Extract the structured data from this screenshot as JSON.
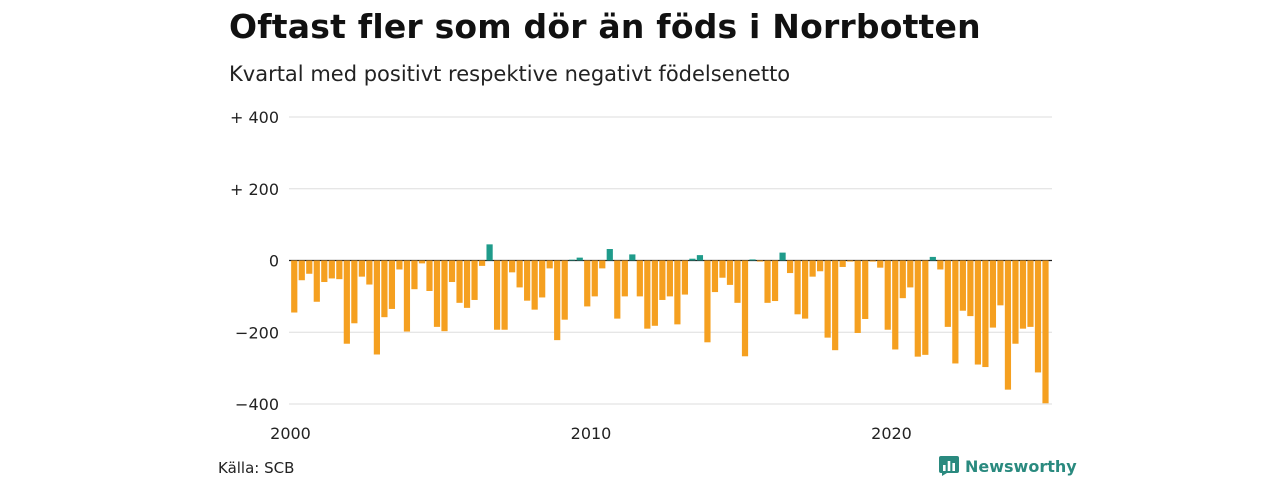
{
  "header": {
    "title": "Oftast fler som dör än föds i Norrbotten",
    "subtitle": "Kvartal med positivt respektive negativt födelsenetto"
  },
  "footer": {
    "source": "Källa: SCB",
    "brand": "Newsworthy",
    "brand_icon": "newsworthy-logo-icon"
  },
  "colors": {
    "positive": "#1f9b8b",
    "negative": "#f5a020",
    "grid": "#dddddd",
    "axis": "#222222"
  },
  "chart_data": {
    "type": "bar",
    "title": "Oftast fler som dör än föds i Norrbotten",
    "subtitle": "Kvartal med positivt respektive negativt födelsenetto",
    "xlabel": "",
    "ylabel": "",
    "ylim": [
      -400,
      400
    ],
    "yticks": [
      400,
      200,
      0,
      -200,
      -400
    ],
    "ytick_labels": [
      "+ 400",
      "+ 200",
      "0",
      "−200",
      "−400"
    ],
    "xticks": [
      2000,
      2010,
      2020
    ],
    "x_start": "2000 Q1",
    "frequency": "quarterly",
    "grid": true,
    "values": [
      -145,
      -55,
      -37,
      -115,
      -60,
      -50,
      -52,
      -232,
      -175,
      -45,
      -67,
      -262,
      -158,
      -135,
      -25,
      -198,
      -80,
      -8,
      -85,
      -185,
      -197,
      -60,
      -118,
      -132,
      -110,
      -15,
      45,
      -193,
      -193,
      -33,
      -75,
      -112,
      -137,
      -103,
      -22,
      -222,
      -165,
      2,
      8,
      -128,
      -100,
      -22,
      32,
      -162,
      -100,
      17,
      -100,
      -190,
      -182,
      -110,
      -100,
      -178,
      -95,
      5,
      15,
      -228,
      -88,
      -48,
      -68,
      -118,
      -267,
      3,
      -3,
      -118,
      -113,
      22,
      -35,
      -150,
      -162,
      -45,
      -30,
      -215,
      -250,
      -18,
      -3,
      -202,
      -163,
      -3,
      -20,
      -193,
      -248,
      -105,
      -75,
      -268,
      -263,
      10,
      -25,
      -185,
      -287,
      -140,
      -155,
      -290,
      -297,
      -187,
      -125,
      -360,
      -232,
      -190,
      -185,
      -312,
      -398
    ]
  }
}
